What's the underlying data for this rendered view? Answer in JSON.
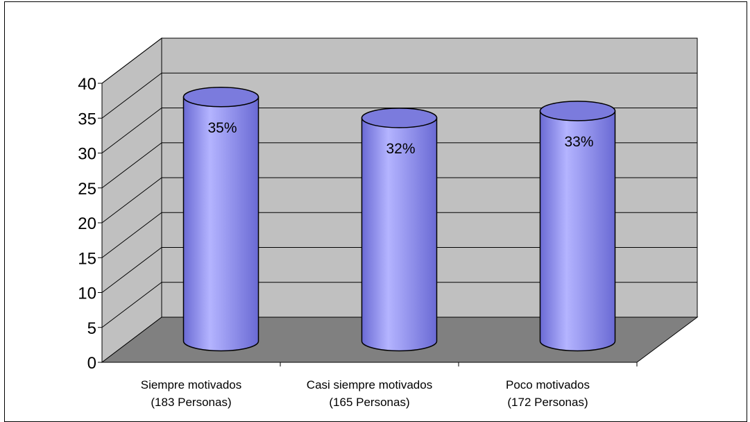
{
  "chart_data": {
    "type": "bar",
    "style": "3d-cylinder",
    "categories": [
      [
        "Siempre motivados",
        "(183 Personas)"
      ],
      [
        "Casi siempre motivados",
        "(165 Personas)"
      ],
      [
        "Poco motivados",
        "(172 Personas)"
      ]
    ],
    "values": [
      35,
      32,
      33
    ],
    "data_labels": [
      "35%",
      "32%",
      "33%"
    ],
    "ylim": [
      0,
      40
    ],
    "yticks": [
      "0",
      "5",
      "10",
      "15",
      "20",
      "25",
      "30",
      "35",
      "40"
    ],
    "grid": true,
    "legend": "none",
    "colors": {
      "bar_fill": "#9c9cf0",
      "bar_light": "#b4b4ff",
      "bar_dark": "#6a6ad4",
      "bar_top": "#7b7bdd",
      "back_wall": "#c0c0c0",
      "side_wall": "#c0c0c0",
      "floor": "#808080",
      "gridline": "#000000"
    }
  }
}
